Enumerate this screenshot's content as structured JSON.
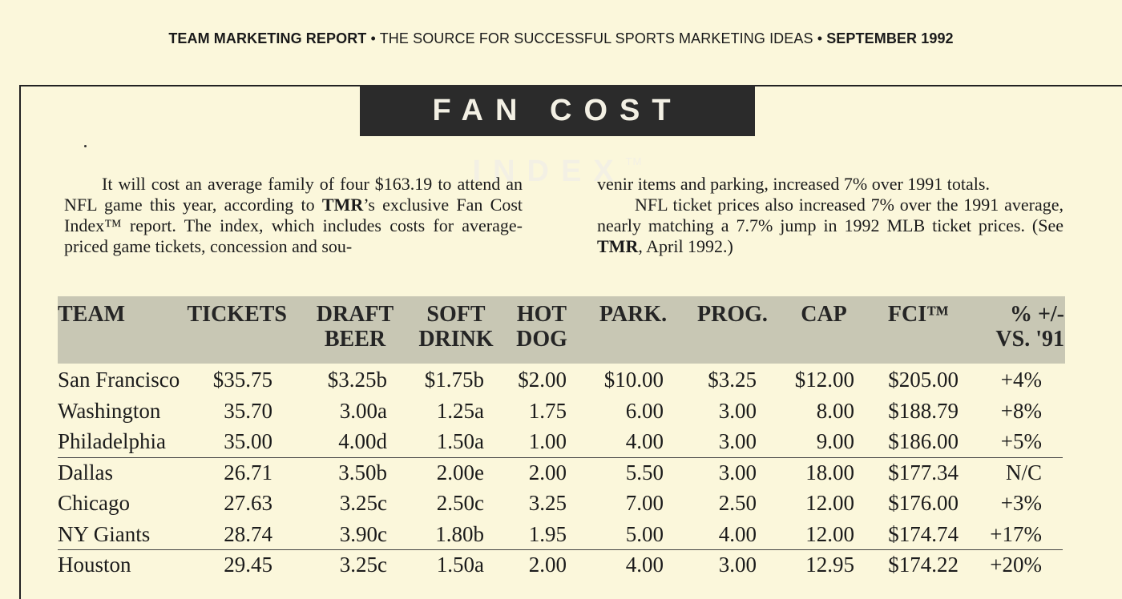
{
  "masthead": {
    "left": "TEAM MARKETING REPORT",
    "sep1": " • ",
    "middle": "THE SOURCE FOR SUCCESSFUL SPORTS MARKETING IDEAS",
    "sep2": " • ",
    "right": "SEPTEMBER 1992"
  },
  "title": {
    "text": "FAN COST INDEX",
    "mark": "TM"
  },
  "article": {
    "col1": [
      {
        "t": "It will cost an average family of four $163.19 to attend an NFL game this year, according to "
      },
      {
        "b": "TMR"
      },
      {
        "t": "’s exclusive Fan Cost Index™ report. The index, which includes costs for average-priced game tickets, concession and sou-"
      }
    ],
    "col2": [
      {
        "t": "venir items and parking, increased 7% over 1991 totals."
      },
      {
        "indent": "NFL ticket prices also increased 7% over the 1991 average, nearly matching a 7.7% jump in 1992 MLB ticket prices. (See "
      },
      {
        "b": "TMR"
      },
      {
        "t": ", April 1992.)"
      }
    ]
  },
  "table": {
    "headers": [
      {
        "l1": "TEAM",
        "l2": ""
      },
      {
        "l1": "TICKETS",
        "l2": ""
      },
      {
        "l1": "DRAFT",
        "l2": "BEER"
      },
      {
        "l1": "SOFT",
        "l2": "DRINK"
      },
      {
        "l1": "HOT",
        "l2": "DOG"
      },
      {
        "l1": "PARK.",
        "l2": ""
      },
      {
        "l1": "PROG.",
        "l2": ""
      },
      {
        "l1": "CAP",
        "l2": ""
      },
      {
        "l1": "FCI™",
        "l2": ""
      },
      {
        "l1": "% +/-",
        "l2": "VS. '91"
      }
    ],
    "rows": [
      [
        "San Francisco",
        "$35.75",
        "$3.25b",
        "$1.75b",
        "$2.00",
        "$10.00",
        "$3.25",
        "$12.00",
        "$205.00",
        "+4%"
      ],
      [
        "Washington",
        "35.70",
        "3.00a",
        "1.25a",
        "1.75",
        "6.00",
        "3.00",
        "8.00",
        "$188.79",
        "+8%"
      ],
      [
        "Philadelphia",
        "35.00",
        "4.00d",
        "1.50a",
        "1.00",
        "4.00",
        "3.00",
        "9.00",
        "$186.00",
        "+5%"
      ],
      [
        "Dallas",
        "26.71",
        "3.50b",
        "2.00e",
        "2.00",
        "5.50",
        "3.00",
        "18.00",
        "$177.34",
        "N/C"
      ],
      [
        "Chicago",
        "27.63",
        "3.25c",
        "2.50c",
        "3.25",
        "7.00",
        "2.50",
        "12.00",
        "$176.00",
        "+3%"
      ],
      [
        "NY Giants",
        "28.74",
        "3.90c",
        "1.80b",
        "1.95",
        "5.00",
        "4.00",
        "12.00",
        "$174.74",
        "+17%"
      ],
      [
        "Houston",
        "29.45",
        "3.25c",
        "1.50a",
        "2.00",
        "4.00",
        "3.00",
        "12.95",
        "$174.22",
        "+20%"
      ]
    ]
  }
}
